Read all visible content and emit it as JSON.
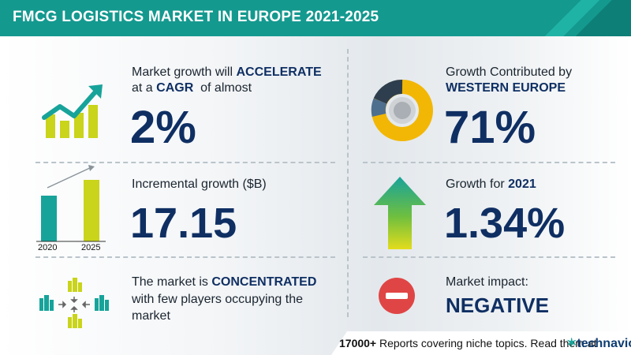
{
  "header": {
    "title": "FMCG LOGISTICS MARKET IN EUROPE 2021-2025",
    "accent_color": "#14998f"
  },
  "stats": {
    "cagr": {
      "line1_prefix": "Market growth will ",
      "line1_bold": "ACCELERATE",
      "line2_prefix": "at a ",
      "line2_bold": "CAGR",
      "line2_suffix": "  of almost",
      "value": "2%",
      "icon": "growth-chart-icon"
    },
    "incremental": {
      "label": "Incremental growth ($B)",
      "value": "17.15",
      "bar_labels": [
        "2020",
        "2025"
      ],
      "icon": "bar-compare-icon"
    },
    "concentration": {
      "line1_prefix": "The market is ",
      "line1_bold": "CONCENTRATED",
      "line2": "with few players occupying the",
      "line3": "market",
      "icon": "city-network-icon"
    },
    "region": {
      "line1": "Growth Contributed by",
      "line2_bold": "WESTERN EUROPE",
      "value": "71%",
      "icon": "donut-icon"
    },
    "yearly": {
      "label_prefix": "Growth for ",
      "label_bold": "2021",
      "value": "1.34%",
      "icon": "up-arrow-icon"
    },
    "impact": {
      "label": "Market impact:",
      "value": "NEGATIVE",
      "icon": "minus-circle-icon"
    }
  },
  "footer": {
    "count": "17000+",
    "text": " Reports covering niche topics. Read them at",
    "brand": "technavio",
    "brand_mark": "✶"
  },
  "colors": {
    "navy": "#0f2f63",
    "teal": "#14998f",
    "yellow_green": "#c9d41a",
    "red": "#e04545"
  }
}
